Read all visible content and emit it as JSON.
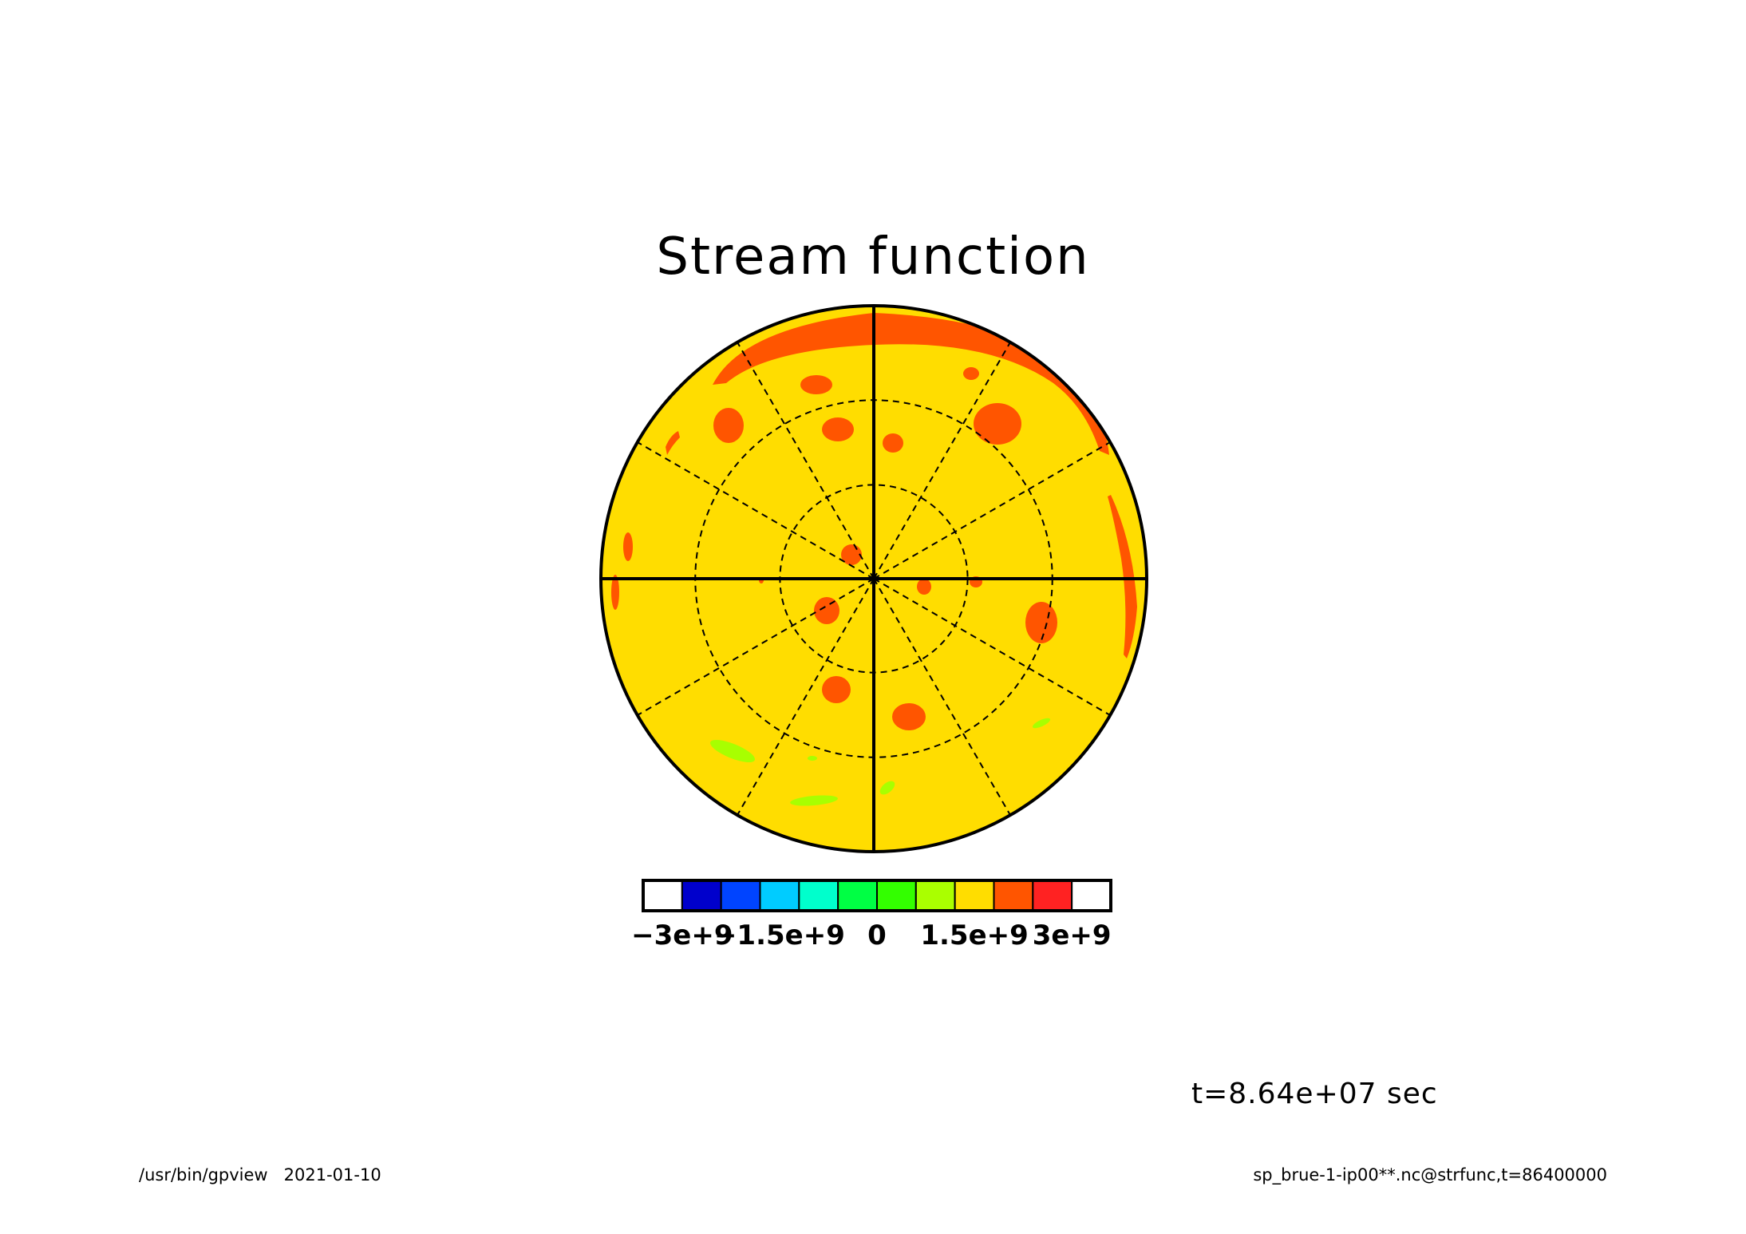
{
  "title": "Stream function",
  "time_label": "t=8.64e+07 sec",
  "footer": {
    "program": "/usr/bin/gpview",
    "date": "2021-01-10",
    "source": "sp_brue-1-ip00**.nc@strfunc,t=86400000"
  },
  "colors": {
    "background_fill": "#ffdd00",
    "high_fill": "#ff5500",
    "low_fill": "#a8ff00",
    "outline": "#000000"
  },
  "chart_data": {
    "type": "heatmap",
    "projection": "polar stereographic",
    "title": "Stream function",
    "colorbar": {
      "levels": [
        -3000000000.0,
        -2500000000.0,
        -2000000000.0,
        -1500000000.0,
        -1000000000.0,
        -500000000.0,
        0,
        500000000.0,
        1000000000.0,
        1500000000.0,
        2000000000.0,
        2500000000.0,
        3000000000.0
      ],
      "colors": [
        "#ffffff",
        "#0000cc",
        "#0044ff",
        "#00ccff",
        "#00ffcc",
        "#00ff44",
        "#33ff00",
        "#aaff00",
        "#ffdd00",
        "#ff5500",
        "#ff2222",
        "#ffffff"
      ],
      "tick_labels": [
        "−3e+9",
        "−1.5e+9",
        "0",
        "1.5e+9",
        "3e+9"
      ],
      "tick_values": [
        -3000000000.0,
        -1500000000.0,
        0,
        1500000000.0,
        3000000000.0
      ]
    },
    "dominant_range": [
      1000000000.0,
      1500000000.0
    ],
    "highs_range": [
      1500000000.0,
      2000000000.0
    ],
    "lows_range": [
      500000000.0,
      1000000000.0
    ],
    "grid": {
      "meridians_every_deg": 30,
      "latitude_circles": 2
    }
  }
}
